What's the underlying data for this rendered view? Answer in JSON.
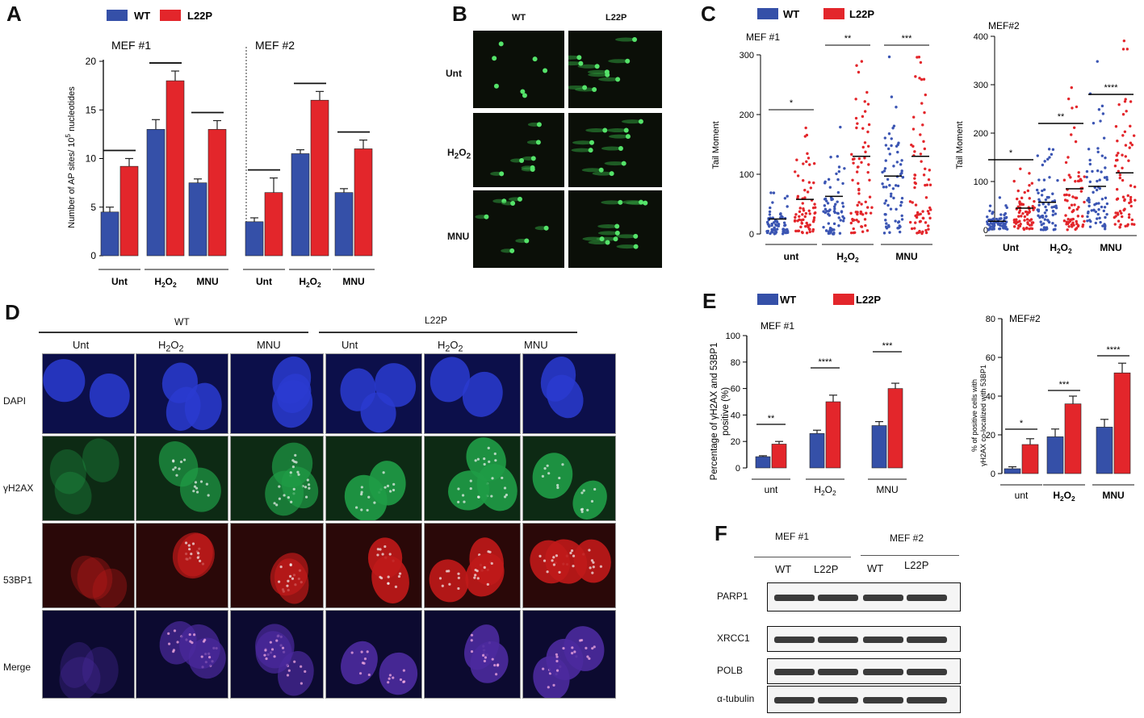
{
  "panels": {
    "A": "A",
    "B": "B",
    "C": "C",
    "D": "D",
    "E": "E",
    "F": "F"
  },
  "legend": {
    "wt": "WT",
    "mut": "L22P"
  },
  "colors": {
    "wt": "#3550a8",
    "mut": "#e3262b",
    "wt_dot": "#3b55b3",
    "mut_dot": "#e3262b"
  },
  "panelA": {
    "ylabel_main": "Number of AP sites/ 10",
    "ylabel_sup": "5",
    "ylabel_tail": " nucleotides",
    "group_titles": [
      "MEF #1",
      "MEF #2"
    ],
    "categories": [
      "Unt",
      "H2O2",
      "MNU",
      "Unt",
      "H2O2",
      "MNU"
    ],
    "yticks": [
      "0",
      "5",
      "10",
      "15",
      "20"
    ]
  },
  "panelB": {
    "columns": [
      "WT",
      "L22P"
    ],
    "rows": [
      "Unt",
      "H2O2",
      "MNU"
    ]
  },
  "panelC": {
    "title1": "MEF #1",
    "title2": "MEF#2",
    "ylabel": "Tail Moment",
    "categories": [
      "unt",
      "H2O2",
      "MNU"
    ],
    "cats2": [
      "Unt",
      "H2O2",
      "MNU"
    ],
    "yticks1": [
      "0",
      "100",
      "200",
      "300"
    ],
    "yticks2": [
      "0",
      "100",
      "200",
      "300",
      "400"
    ],
    "sig1": [
      "*",
      "**",
      "***"
    ],
    "sig2": [
      "*",
      "**",
      "****"
    ]
  },
  "panelD": {
    "groups": [
      "WT",
      "L22P"
    ],
    "columns": [
      "Unt",
      "H2O2",
      "MNU",
      "Unt",
      "H2O2",
      "MNU"
    ],
    "rows": [
      "DAPI",
      "γH2AX",
      "53BP1",
      "Merge"
    ]
  },
  "panelE": {
    "title1": "MEF #1",
    "title2": "MEF#2",
    "ylabel1_a": "Percentage of γH2AX and 53BP1",
    "ylabel1_b": "positive (%)",
    "ylabel2_a": "% of positive cells with",
    "ylabel2_b": "γH2AX co-localized with 53BP1",
    "categories": [
      "unt",
      "H2O2",
      "MNU"
    ],
    "yticks1": [
      "0",
      "20",
      "40",
      "60",
      "80",
      "100"
    ],
    "yticks2": [
      "0",
      "20",
      "40",
      "60",
      "80"
    ],
    "sig1": [
      "**",
      "****",
      "***"
    ],
    "sig2": [
      "*",
      "***",
      "****"
    ]
  },
  "panelF": {
    "groups": [
      "MEF #1",
      "MEF #2"
    ],
    "lanes": [
      "WT",
      "L22P",
      "WT",
      "L22P"
    ],
    "proteins": [
      "PARP1",
      "XRCC1",
      "POLB",
      "α-tubulin"
    ]
  },
  "chart_data": [
    {
      "type": "bar",
      "panel": "A",
      "ylabel": "Number of AP sites/ 10^5 nucleotides",
      "categories": [
        "Unt",
        "H2O2",
        "MNU",
        "Unt",
        "H2O2",
        "MNU"
      ],
      "groups": [
        "MEF #1",
        "MEF #1",
        "MEF #1",
        "MEF #2",
        "MEF #2",
        "MEF #2"
      ],
      "series": [
        {
          "name": "WT",
          "values": [
            4.5,
            13.0,
            7.5,
            3.5,
            10.5,
            6.5
          ],
          "errors": [
            0.5,
            1.0,
            0.4,
            0.4,
            0.4,
            0.4
          ]
        },
        {
          "name": "L22P",
          "values": [
            9.2,
            18.0,
            13.0,
            6.5,
            16.0,
            11.0
          ],
          "errors": [
            0.8,
            1.0,
            0.9,
            1.5,
            0.9,
            0.9
          ]
        }
      ],
      "ylim": [
        0,
        20
      ]
    },
    {
      "type": "scatter",
      "panel": "C",
      "title": "MEF #1",
      "ylabel": "Tail Moment",
      "categories": [
        "unt",
        "H2O2",
        "MNU"
      ],
      "series": [
        {
          "name": "WT",
          "means": [
            25,
            63,
            97
          ]
        },
        {
          "name": "L22P",
          "means": [
            58,
            130,
            130
          ]
        }
      ],
      "ylim": [
        0,
        300
      ]
    },
    {
      "type": "scatter",
      "panel": "C",
      "title": "MEF#2",
      "ylabel": "Tail Moment",
      "categories": [
        "Unt",
        "H2O2",
        "MNU"
      ],
      "series": [
        {
          "name": "WT",
          "means": [
            18,
            57,
            90
          ]
        },
        {
          "name": "L22P",
          "means": [
            45,
            85,
            118
          ]
        }
      ],
      "ylim": [
        0,
        400
      ]
    },
    {
      "type": "bar",
      "panel": "E",
      "title": "MEF #1",
      "ylabel": "Percentage of γH2AX and 53BP1 positive (%)",
      "categories": [
        "unt",
        "H2O2",
        "MNU"
      ],
      "series": [
        {
          "name": "WT",
          "values": [
            8.5,
            26,
            32
          ],
          "errors": [
            0.7,
            2.5,
            3
          ]
        },
        {
          "name": "L22P",
          "values": [
            18,
            50,
            60
          ],
          "errors": [
            2,
            5,
            4
          ]
        }
      ],
      "ylim": [
        0,
        100
      ]
    },
    {
      "type": "bar",
      "panel": "E",
      "title": "MEF#2",
      "ylabel": "% of positive cells with γH2AX co-localized with 53BP1",
      "categories": [
        "unt",
        "H2O2",
        "MNU"
      ],
      "series": [
        {
          "name": "WT",
          "values": [
            2.5,
            19,
            24
          ],
          "errors": [
            1,
            4,
            4
          ]
        },
        {
          "name": "L22P",
          "values": [
            15,
            36,
            52
          ],
          "errors": [
            3,
            4,
            5
          ]
        }
      ],
      "ylim": [
        0,
        80
      ]
    }
  ]
}
